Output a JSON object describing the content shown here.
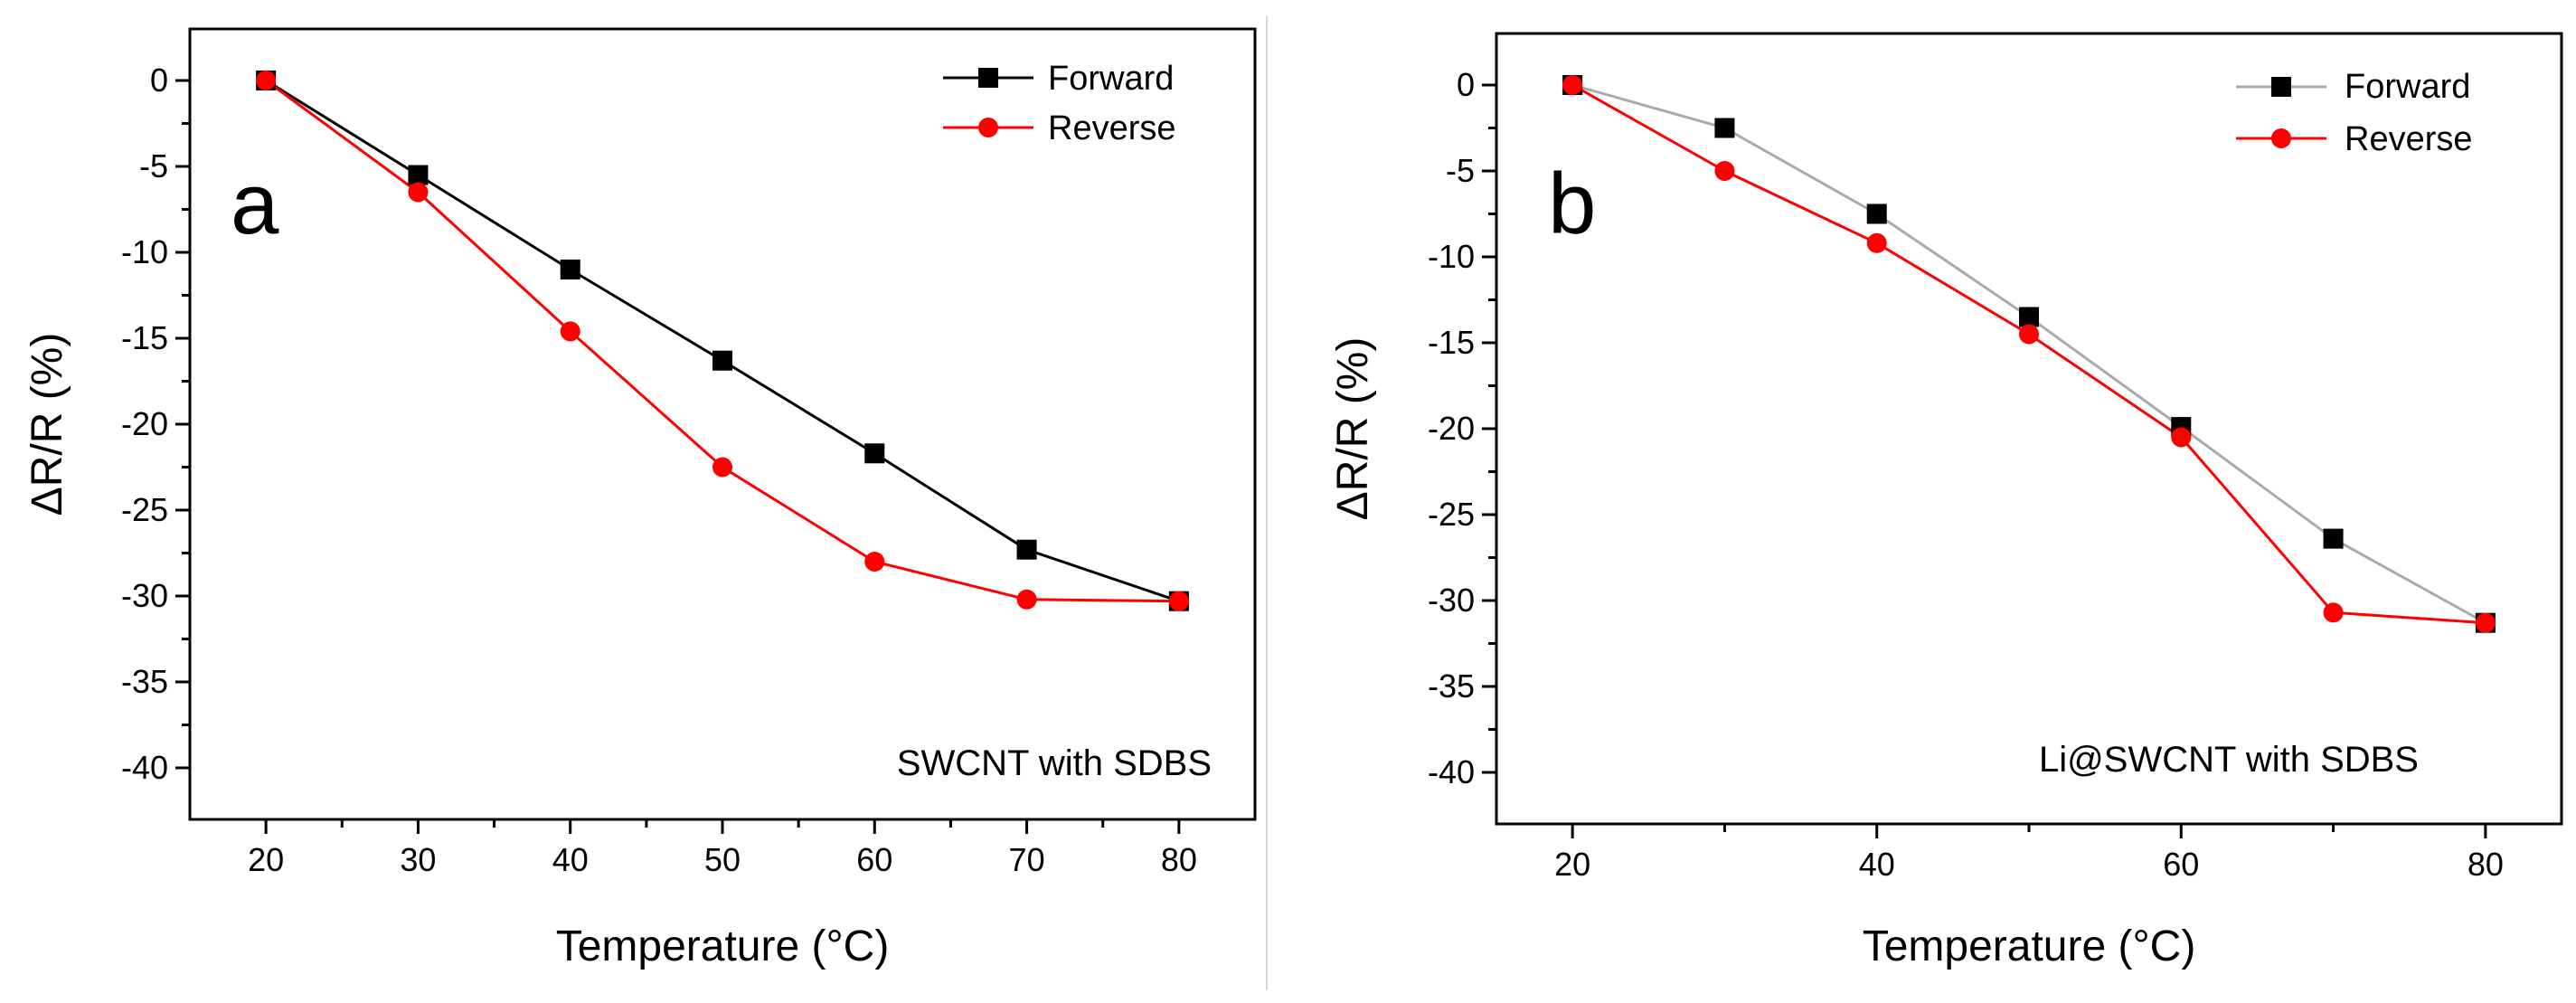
{
  "chart_data": [
    {
      "type": "line",
      "panel_label": "a",
      "annotation": "SWCNT with SDBS",
      "xlabel": "Temperature (°C)",
      "ylabel": "ΔR/R (%)",
      "xlim": [
        15,
        85
      ],
      "ylim": [
        -43,
        3
      ],
      "xticks": [
        20,
        30,
        40,
        50,
        60,
        70,
        80
      ],
      "xtick_labels": [
        "20",
        "30",
        "40",
        "50",
        "60",
        "70",
        "80"
      ],
      "yticks": [
        0,
        -5,
        -10,
        -15,
        -20,
        -25,
        -30,
        -35,
        -40
      ],
      "ytick_labels": [
        "0",
        "-5",
        "-10",
        "-15",
        "-20",
        "-25",
        "-30",
        "-35",
        "-40"
      ],
      "grid": false,
      "legend_position": "top-right",
      "series": [
        {
          "name": "Forward",
          "color": "#000000",
          "marker": "square",
          "x": [
            20,
            30,
            40,
            50,
            60,
            70,
            80
          ],
          "values": [
            0,
            -5.5,
            -11.0,
            -16.3,
            -21.7,
            -27.3,
            -30.3
          ]
        },
        {
          "name": "Reverse",
          "color": "#ff0000",
          "marker": "circle",
          "x": [
            20,
            30,
            40,
            50,
            60,
            70,
            80
          ],
          "values": [
            0,
            -6.5,
            -14.6,
            -22.5,
            -28.0,
            -30.2,
            -30.3
          ]
        }
      ]
    },
    {
      "type": "line",
      "panel_label": "b",
      "annotation": "Li@SWCNT with SDBS",
      "xlabel": "Temperature (°C)",
      "ylabel": "ΔR/R (%)",
      "xlim": [
        15,
        85
      ],
      "ylim": [
        -43,
        3
      ],
      "xticks": [
        20,
        40,
        60,
        80
      ],
      "xtick_labels": [
        "20",
        "40",
        "60",
        "80"
      ],
      "yticks": [
        0,
        -5,
        -10,
        -15,
        -20,
        -25,
        -30,
        -35,
        -40
      ],
      "ytick_labels": [
        "0",
        "-5",
        "-10",
        "-15",
        "-20",
        "-25",
        "-30",
        "-35",
        "-40"
      ],
      "grid": false,
      "legend_position": "top-right",
      "series": [
        {
          "name": "Forward",
          "color": "#000000",
          "line_color": "#aaaaaa",
          "marker": "square",
          "x": [
            20,
            30,
            40,
            50,
            60,
            70,
            80
          ],
          "values": [
            0,
            -2.5,
            -7.5,
            -13.5,
            -19.9,
            -26.4,
            -31.3
          ]
        },
        {
          "name": "Reverse",
          "color": "#ff0000",
          "marker": "circle",
          "x": [
            20,
            30,
            40,
            50,
            60,
            70,
            80
          ],
          "values": [
            0,
            -5.0,
            -9.2,
            -14.5,
            -20.5,
            -30.7,
            -31.3
          ]
        }
      ]
    }
  ]
}
